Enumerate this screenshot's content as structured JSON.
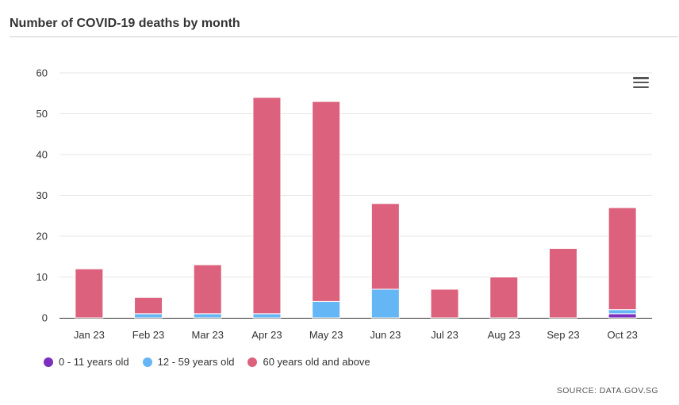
{
  "header": {
    "title": "Number of COVID-19 deaths by month"
  },
  "source": "SOURCE: DATA.GOV.SG",
  "menu_icon": "hamburger-menu-icon",
  "chart_data": {
    "type": "bar",
    "stacked": true,
    "title": "Number of COVID-19 deaths by month",
    "categories": [
      "Jan 23",
      "Feb 23",
      "Mar 23",
      "Apr 23",
      "May 23",
      "Jun 23",
      "Jul 23",
      "Aug 23",
      "Sep 23",
      "Oct 23"
    ],
    "series": [
      {
        "name": "0 - 11 years old",
        "color": "#7c2fbf",
        "values": [
          0,
          0,
          0,
          0,
          0,
          0,
          0,
          0,
          0,
          1
        ]
      },
      {
        "name": "12 - 59 years old",
        "color": "#65b6f5",
        "values": [
          0,
          1,
          1,
          1,
          4,
          7,
          0,
          0,
          0,
          1
        ]
      },
      {
        "name": "60 years old and above",
        "color": "#db617c",
        "values": [
          12,
          4,
          12,
          53,
          49,
          21,
          7,
          10,
          17,
          25
        ]
      }
    ],
    "ylim": [
      0,
      60
    ],
    "yticks": [
      0,
      10,
      20,
      30,
      40,
      50,
      60
    ],
    "grid": true,
    "legend_position": "bottom-left"
  }
}
